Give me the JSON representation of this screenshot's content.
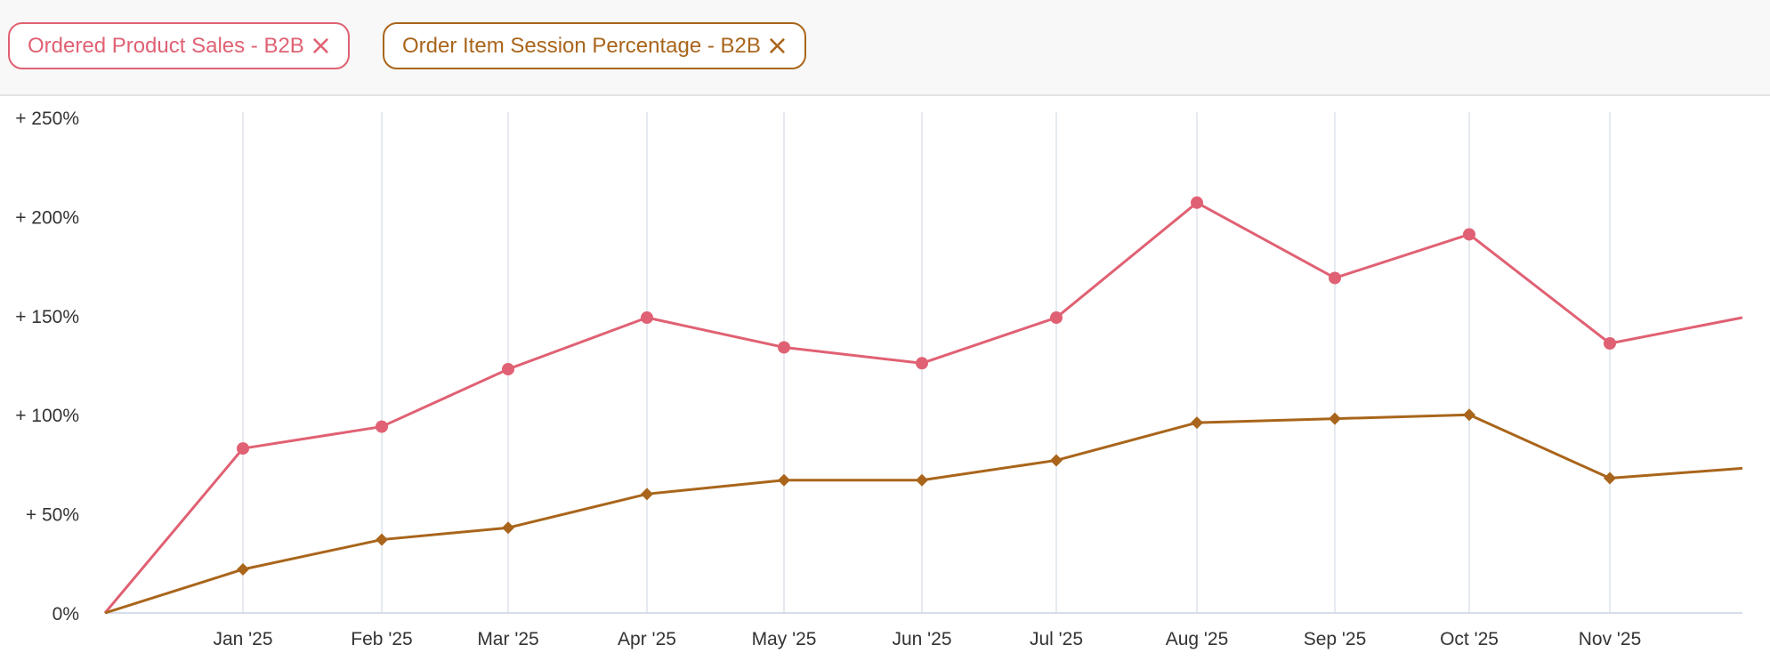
{
  "filters": [
    {
      "label": "Ordered Product Sales - B2B",
      "close": "×",
      "color": "#e06173"
    },
    {
      "label": "Order Item Session Percentage - B2B",
      "close": "×",
      "color": "#a9651b"
    }
  ],
  "chart_data": {
    "type": "line",
    "categories": [
      "",
      "Jan '25",
      "Feb '25",
      "Mar '25",
      "Apr '25",
      "May '25",
      "Jun '25",
      "Jul '25",
      "Aug '25",
      "Sep '25",
      "Oct '25",
      "Nov '25",
      ""
    ],
    "x_tick_labels": [
      "Jan '25",
      "Feb '25",
      "Mar '25",
      "Apr '25",
      "May '25",
      "Jun '25",
      "Jul '25",
      "Aug '25",
      "Sep '25",
      "Oct '25",
      "Nov '25"
    ],
    "y_tick_labels": [
      "0%",
      "+ 50%",
      "+ 100%",
      "+ 150%",
      "+ 200%",
      "+ 250%"
    ],
    "ylim": [
      0,
      250
    ],
    "grid": "vertical",
    "series": [
      {
        "name": "Ordered Product Sales - B2B",
        "color": "#e06173",
        "marker": "circle",
        "values": [
          0,
          83,
          94,
          123,
          149,
          134,
          126,
          149,
          207,
          169,
          191,
          136,
          149
        ]
      },
      {
        "name": "Order Item Session Percentage - B2B",
        "color": "#a9651b",
        "marker": "diamond",
        "values": [
          0,
          22,
          37,
          43,
          60,
          67,
          67,
          77,
          96,
          98,
          100,
          68,
          73
        ]
      }
    ]
  }
}
